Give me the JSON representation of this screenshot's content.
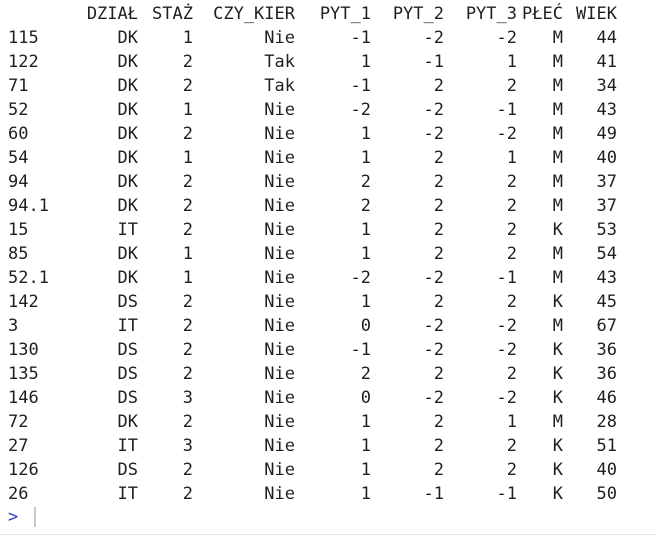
{
  "console": {
    "columns": [
      "",
      "DZIAŁ",
      "STAŻ",
      "CZY_KIER",
      "PYT_1",
      "PYT_2",
      "PYT_3",
      "PŁEĆ",
      "WIEK"
    ],
    "rows": [
      [
        "115",
        "DK",
        "1",
        "Nie",
        "-1",
        "-2",
        "-2",
        "M",
        "44"
      ],
      [
        "122",
        "DK",
        "2",
        "Tak",
        "1",
        "-1",
        "1",
        "M",
        "41"
      ],
      [
        "71",
        "DK",
        "2",
        "Tak",
        "-1",
        "2",
        "2",
        "M",
        "34"
      ],
      [
        "52",
        "DK",
        "1",
        "Nie",
        "-2",
        "-2",
        "-1",
        "M",
        "43"
      ],
      [
        "60",
        "DK",
        "2",
        "Nie",
        "1",
        "-2",
        "-2",
        "M",
        "49"
      ],
      [
        "54",
        "DK",
        "1",
        "Nie",
        "1",
        "2",
        "1",
        "M",
        "40"
      ],
      [
        "94",
        "DK",
        "2",
        "Nie",
        "2",
        "2",
        "2",
        "M",
        "37"
      ],
      [
        "94.1",
        "DK",
        "2",
        "Nie",
        "2",
        "2",
        "2",
        "M",
        "37"
      ],
      [
        "15",
        "IT",
        "2",
        "Nie",
        "1",
        "2",
        "2",
        "K",
        "53"
      ],
      [
        "85",
        "DK",
        "1",
        "Nie",
        "1",
        "2",
        "2",
        "M",
        "54"
      ],
      [
        "52.1",
        "DK",
        "1",
        "Nie",
        "-2",
        "-2",
        "-1",
        "M",
        "43"
      ],
      [
        "142",
        "DS",
        "2",
        "Nie",
        "1",
        "2",
        "2",
        "K",
        "45"
      ],
      [
        "3",
        "IT",
        "2",
        "Nie",
        "0",
        "-2",
        "-2",
        "M",
        "67"
      ],
      [
        "130",
        "DS",
        "2",
        "Nie",
        "-1",
        "-2",
        "-2",
        "K",
        "36"
      ],
      [
        "135",
        "DS",
        "2",
        "Nie",
        "2",
        "2",
        "2",
        "K",
        "36"
      ],
      [
        "146",
        "DS",
        "3",
        "Nie",
        "0",
        "-2",
        "-2",
        "K",
        "46"
      ],
      [
        "72",
        "DK",
        "2",
        "Nie",
        "1",
        "2",
        "1",
        "M",
        "28"
      ],
      [
        "27",
        "IT",
        "3",
        "Nie",
        "1",
        "2",
        "2",
        "K",
        "51"
      ],
      [
        "126",
        "DS",
        "2",
        "Nie",
        "1",
        "2",
        "2",
        "K",
        "40"
      ],
      [
        "26",
        "IT",
        "2",
        "Nie",
        "1",
        "-1",
        "-1",
        "K",
        "50"
      ]
    ],
    "prompt": ">"
  },
  "colors": {
    "text": "#1f1f1f",
    "prompt": "#2a3fbd",
    "background": "#ffffff"
  }
}
